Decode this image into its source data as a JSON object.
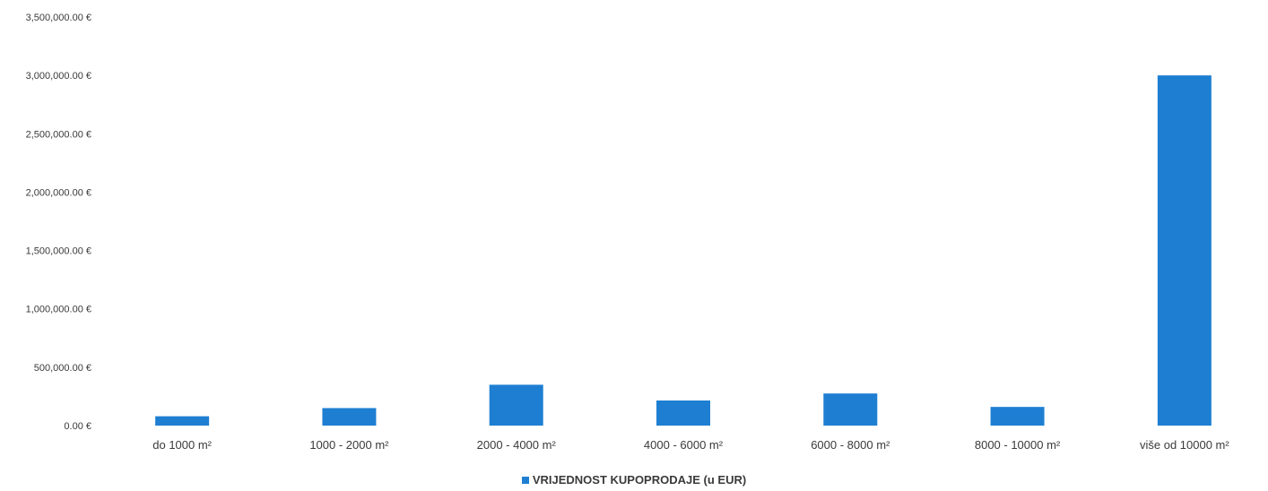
{
  "chart_data": {
    "type": "bar",
    "categories": [
      "do 1000 m²",
      "1000 - 2000 m²",
      "2000 - 4000 m²",
      "4000 - 6000 m²",
      "6000 - 8000 m²",
      "8000 - 10000 m²",
      "više od 10000 m²"
    ],
    "series": [
      {
        "name": "VRIJEDNOST KUPOPRODAJE (u EUR)",
        "color": "#1e7fd2",
        "ranges": [
          [
            0,
            80000
          ],
          [
            0,
            150000
          ],
          [
            0,
            350000
          ],
          [
            0,
            215000
          ],
          [
            0,
            275000
          ],
          [
            0,
            160000
          ],
          [
            0,
            3000000
          ]
        ]
      }
    ],
    "yticks": [
      0,
      500000,
      1000000,
      1500000,
      2000000,
      2500000,
      3000000,
      3500000
    ],
    "ytick_labels": [
      "0.00 €",
      "500,000.00 €",
      "1,000,000.00 €",
      "1,500,000.00 €",
      "2,000,000.00 €",
      "2,500,000.00 €",
      "3,000,000.00 €",
      "3,500,000.00 €"
    ],
    "ylim": [
      0,
      3500000
    ],
    "grid": false,
    "legend": "bottom-center"
  }
}
